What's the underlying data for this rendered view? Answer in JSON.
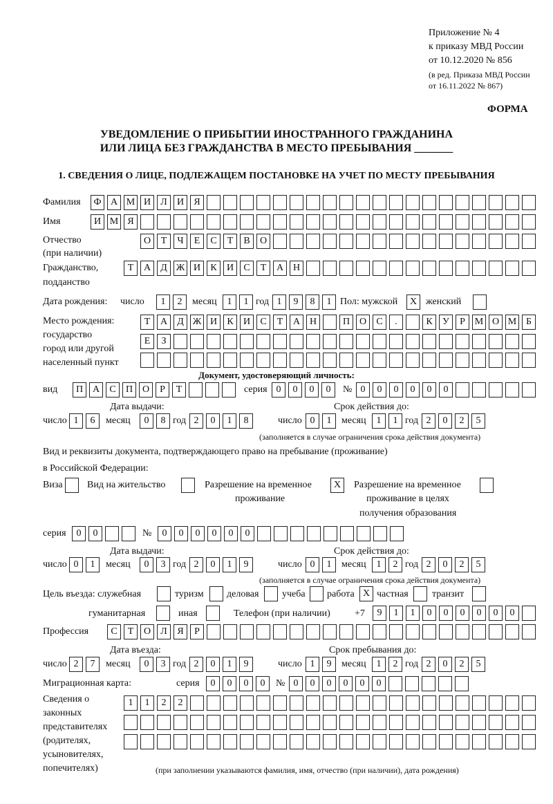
{
  "header": {
    "appendix": "Приложение № 4",
    "order": "к приказу МВД России",
    "order_date": "от 10.12.2020 № 856",
    "edition_1": "(в ред. Приказа МВД России",
    "edition_2": "от 16.11.2022 № 867)",
    "form_label": "ФОРМА",
    "title_1": "УВЕДОМЛЕНИЕ О ПРИБЫТИИ ИНОСТРАННОГО ГРАЖДАНИНА",
    "title_2": "ИЛИ ЛИЦА БЕЗ ГРАЖДАНСТВА В МЕСТО ПРЕБЫВАНИЯ _______",
    "section_1": "1. СВЕДЕНИЯ О ЛИЦЕ, ПОДЛЕЖАЩЕМ ПОСТАНОВКЕ НА УЧЕТ ПО МЕСТУ ПРЕБЫВАНИЯ"
  },
  "labels": {
    "surname": "Фамилия",
    "name": "Имя",
    "patronymic_1": "Отчество",
    "patronymic_2": "(при наличии)",
    "citizenship_1": "Гражданство,",
    "citizenship_2": "подданство",
    "birth_date": "Дата рождения:",
    "day": "число",
    "month": "месяц",
    "year": "год",
    "sex": "Пол: мужской",
    "female": "женский",
    "birthplace_1": "Место рождения:",
    "birthplace_2": "государство",
    "birthplace_3": "город или другой",
    "birthplace_4": "населенный пункт",
    "id_doc": "Документ, удостоверяющий личность:",
    "kind": "вид",
    "series": "серия",
    "number": "№",
    "issue_date": "Дата выдачи:",
    "valid_until": "Срок действия до:",
    "validity_note": "(заполняется в случае ограничения срока действия документа)",
    "stay_doc_1": "Вид и реквизиты документа, подтверждающего право на пребывание (проживание)",
    "stay_doc_2": "в Российской Федерации:",
    "visa": "Виза",
    "residence": "Вид на жительство",
    "temp_res_1": "Разрешение на временное",
    "temp_res_2": "проживание",
    "temp_edu_1": "Разрешение на временное",
    "temp_edu_2": "проживание в целях",
    "temp_edu_3": "получения образования",
    "purpose": "Цель въезда: служебная",
    "tourism": "туризм",
    "business": "деловая",
    "study": "учеба",
    "work": "работа",
    "private": "частная",
    "transit": "транзит",
    "humanitarian": "гуманитарная",
    "other": "иная",
    "phone": "Телефон (при наличии)",
    "phone_prefix": "+7",
    "profession": "Профессия",
    "entry_date": "Дата въезда:",
    "stay_until": "Срок пребывания до:",
    "migration_card": "Миграционная карта:",
    "reps_1": "Сведения о",
    "reps_2": "законных",
    "reps_3": "представителях",
    "reps_4": "(родителях,",
    "reps_5": "усыновителях,",
    "reps_6": "попечителях)",
    "reps_note": "(при заполнении указываются фамилия, имя, отчество (при наличии), дата рождения)"
  },
  "person": {
    "surname": "ФАМИЛИЯ",
    "name": "ИМЯ",
    "patronymic": "ОТЧЕСТВО",
    "citizenship": "ТАДЖИКИСТАН",
    "birth_day": "12",
    "birth_month": "11",
    "birth_year": "1981",
    "sex_male": "X",
    "sex_female": "",
    "birthplace_1": "ТАДЖИКИСТАН ПОС. КУРМОМБ",
    "birthplace_2": "ЕЗ",
    "birthplace_3": ""
  },
  "id_document": {
    "kind": "ПАСПОРТ",
    "series": "0000",
    "number": "000000",
    "issue_day": "16",
    "issue_month": "08",
    "issue_year": "2018",
    "valid_day": "01",
    "valid_month": "11",
    "valid_year": "2025"
  },
  "stay_document": {
    "visa": "",
    "residence": "",
    "temp_residence": "X",
    "temp_education": "",
    "series": "00",
    "number": "000000",
    "issue_day": "01",
    "issue_month": "03",
    "issue_year": "2019",
    "valid_day": "01",
    "valid_month": "12",
    "valid_year": "2025"
  },
  "purpose": {
    "service": "",
    "tourism": "",
    "business": "",
    "study": "",
    "work": "X",
    "private": "",
    "transit": "",
    "humanitarian": "",
    "other": ""
  },
  "phone": "911000000",
  "profession": "СТОЛЯР",
  "entry": {
    "entry_day": "27",
    "entry_month": "03",
    "entry_year": "2019",
    "stay_day": "19",
    "stay_month": "12",
    "stay_year": "2025"
  },
  "migration_card": {
    "series": "0000",
    "number": "000000"
  },
  "representatives": {
    "line_1": "1122",
    "line_2": "",
    "line_3": ""
  }
}
